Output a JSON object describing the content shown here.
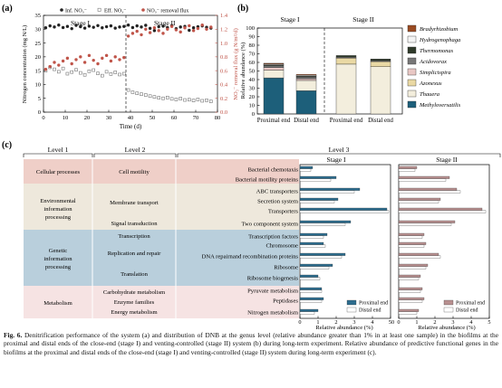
{
  "panel_a": {
    "label": "(a)",
    "legend": [
      "Inf. NO₃⁻",
      "Eff. NO₃⁻",
      "NO₃⁻ removal flux"
    ],
    "stage_labels": [
      "Stage I",
      "Stage II"
    ],
    "xlabel": "Time (d)",
    "ylabel_left": "Nitrogen concentration (mg N/L)",
    "ylabel_right": "NO₃⁻ removal flux (g N/m²/d)",
    "xticks": [
      "0",
      "10",
      "20",
      "30",
      "40",
      "50",
      "60",
      "70",
      "80"
    ],
    "yticks_left": [
      "0",
      "5",
      "10",
      "15",
      "20",
      "25",
      "30",
      "35"
    ],
    "yticks_right": [
      "0.0",
      "0.2",
      "0.4",
      "0.6",
      "0.8",
      "1.0",
      "1.2",
      "1.4"
    ]
  },
  "panel_b": {
    "label": "(b)",
    "stage_labels": [
      "Stage I",
      "Stage II"
    ],
    "ylabel": "Relative abundance (%)",
    "yticks": [
      "0",
      "10",
      "20",
      "30",
      "40",
      "50",
      "60",
      "70",
      "80",
      "90",
      "100"
    ],
    "categories": [
      "Proximal end",
      "Distal end",
      "Proximal end",
      "Distal end"
    ]
  },
  "panel_c": {
    "label": "(c)",
    "headers": [
      "Level 1",
      "Level 2",
      "Level 3"
    ],
    "stage_labels": [
      "Stage I",
      "Stage II"
    ],
    "level1": [
      "Cellular processes",
      "Environmental information processing",
      "Genetic information processing",
      "Metabolism"
    ],
    "level2": [
      "Cell motility",
      "Membrane transport",
      "Signal transduction",
      "Transcription",
      "Replication and repair",
      "Translation",
      "Carbohydrate metabolism",
      "Enzyme families",
      "Energy metabolism"
    ],
    "level3": [
      "Bacterial chemotaxis",
      "Bacterial motility proteins",
      "ABC transporters",
      "Secretion system",
      "Transporters",
      "Two component system",
      "Transcription factors",
      "Chromosome",
      "DNA repairnand recombination proteins",
      "Ribosome",
      "Ribosome biogenesis",
      "Pyruvate metabolism",
      "Peptidases",
      "Nitrogen metabolism"
    ],
    "xlabel": "Relative abundance (%)",
    "xticks_I": [
      "0",
      "1",
      "2",
      "3",
      "4",
      "5"
    ],
    "xticks_II": [
      "0",
      "1",
      "2",
      "3",
      "4",
      "5"
    ],
    "legend_I": [
      "Proximal end",
      "Distal end"
    ],
    "legend_II": [
      "Proximal end",
      "Distal end"
    ]
  },
  "caption": {
    "label": "Fig. 6.",
    "text": "Denitrification performance of the system (a) and distribution of DNB at the genus level (relative abundance greater than 1% in at least one sample) in the biofilms at the proximal and distal ends of the close-end (stage I) and venting-controlled (stage II) system (b) during long-term experiment. Relative abundance of predictive functional genes in the biofilms at the proximal and distal ends of the close-end (stage I) and venting-controlled (stage II) system during long-term experiment (c)."
  },
  "colors": {
    "inf": "#222222",
    "eff": "#777777",
    "flux": "#c0554a",
    "proximal_I": "#2e6d8e",
    "proximal_II": "#b89090",
    "distal": "#ffffff",
    "lvl_cell": "#efcfc8",
    "lvl_env": "#eee8dc",
    "lvl_gen": "#b9cfdc",
    "lvl_met": "#f6e3e3"
  },
  "chart_data": [
    {
      "type": "scatter",
      "title": "",
      "xlabel": "Time (d)",
      "ylabel": "Nitrogen concentration (mg N/L)",
      "xlim": [
        0,
        80
      ],
      "ylim": [
        0,
        35
      ],
      "y2lim": [
        0,
        1.4
      ],
      "stage_boundary": 38,
      "series": [
        {
          "name": "Inf. NO₃⁻",
          "axis": "left",
          "x": [
            1,
            3,
            5,
            7,
            9,
            11,
            13,
            15,
            17,
            19,
            21,
            23,
            25,
            27,
            29,
            31,
            33,
            35,
            37,
            39,
            41,
            43,
            45,
            47,
            49,
            51,
            53,
            55,
            57,
            59,
            61,
            63,
            65,
            67,
            69,
            71,
            73,
            75,
            77
          ],
          "y": [
            30.5,
            31.2,
            30.8,
            31.5,
            30.6,
            31.0,
            30.2,
            31.4,
            30.9,
            30.4,
            31.1,
            30.7,
            31.3,
            30.5,
            30.9,
            31.2,
            30.4,
            30.8,
            31.0,
            31.5,
            30.6,
            31.2,
            30.8,
            31.4,
            30.3,
            29.5,
            30.9,
            31.1,
            30.6,
            31.3,
            30.2,
            30.8,
            31.0,
            29.6,
            30.5,
            30.9,
            31.2,
            30.7,
            30.4
          ]
        },
        {
          "name": "Eff. NO₃⁻",
          "axis": "left",
          "x": [
            1,
            3,
            5,
            7,
            9,
            11,
            13,
            15,
            17,
            19,
            21,
            23,
            25,
            27,
            29,
            31,
            33,
            35,
            37,
            39,
            41,
            43,
            45,
            47,
            49,
            51,
            53,
            55,
            57,
            59,
            61,
            63,
            65,
            67,
            69,
            71,
            73,
            75,
            77
          ],
          "y": [
            15.0,
            16.2,
            15.5,
            14.6,
            15.8,
            13.9,
            14.5,
            15.3,
            14.2,
            13.5,
            14.8,
            15.2,
            14.0,
            13.2,
            14.6,
            13.8,
            14.4,
            13.6,
            13.9,
            8.0,
            7.2,
            6.8,
            6.5,
            6.2,
            5.8,
            5.5,
            5.2,
            5.0,
            5.3,
            4.8,
            4.6,
            4.9,
            4.4,
            4.5,
            4.2,
            4.6,
            4.1,
            4.3,
            3.9
          ]
        },
        {
          "name": "NO₃⁻ removal flux",
          "axis": "right",
          "x": [
            1,
            3,
            5,
            7,
            9,
            11,
            13,
            15,
            17,
            19,
            21,
            23,
            25,
            27,
            29,
            31,
            33,
            35,
            37,
            39,
            41,
            43,
            45,
            47,
            49,
            51,
            53,
            55,
            57,
            59,
            61,
            63,
            65,
            67,
            69,
            71,
            73,
            75,
            77
          ],
          "y": [
            0.62,
            0.66,
            0.72,
            0.68,
            0.74,
            0.78,
            0.7,
            0.76,
            0.8,
            0.72,
            0.82,
            0.75,
            0.7,
            0.78,
            0.82,
            0.74,
            0.8,
            0.76,
            0.79,
            1.1,
            1.14,
            1.17,
            1.12,
            1.2,
            1.15,
            1.22,
            1.18,
            1.14,
            1.2,
            1.24,
            1.19,
            1.16,
            1.22,
            1.25,
            1.18,
            1.21,
            1.26,
            1.2,
            1.23
          ]
        }
      ]
    },
    {
      "type": "bar",
      "stacked": true,
      "title": "",
      "ylabel": "Relative abundance (%)",
      "ylim": [
        0,
        100
      ],
      "categories": [
        "Proximal end",
        "Distal end",
        "Proximal end",
        "Distal end"
      ],
      "stage_groups": [
        {
          "name": "Stage I",
          "categories": [
            0,
            1
          ]
        },
        {
          "name": "Stage II",
          "categories": [
            2,
            3
          ]
        }
      ],
      "series": [
        {
          "name": "Methyloversatilis",
          "color": "#1d5f7a",
          "values": [
            42,
            27,
            0,
            0
          ]
        },
        {
          "name": "Thauera",
          "color": "#f3eedd",
          "values": [
            9,
            12,
            58,
            55
          ]
        },
        {
          "name": "Azonexus",
          "color": "#ead9a4",
          "values": [
            0,
            0,
            7,
            6
          ]
        },
        {
          "name": "Simplicispira",
          "color": "#e9c8c5",
          "values": [
            3,
            2,
            0,
            0
          ]
        },
        {
          "name": "Acidovorax",
          "color": "#777777",
          "values": [
            2,
            2,
            1,
            1
          ]
        },
        {
          "name": "Thermomonas",
          "color": "#2f3a2a",
          "values": [
            1,
            1,
            2,
            2
          ]
        },
        {
          "name": "Hydrogenophaga",
          "color": "#f4f4f4",
          "values": [
            1,
            1,
            0,
            0
          ]
        },
        {
          "name": "Bradyrhizobium",
          "color": "#9a4b22",
          "values": [
            1,
            1,
            0,
            0
          ]
        }
      ]
    },
    {
      "type": "bar",
      "orientation": "horizontal",
      "title": "Stage I",
      "xlabel": "Relative abundance (%)",
      "xlim": [
        0,
        5
      ],
      "categories": [
        "Bacterial chemotaxis",
        "Bacterial motility proteins",
        "ABC transporters",
        "Secretion system",
        "Transporters",
        "Two component system",
        "Transcription factors",
        "Chromosome",
        "DNA repairnand recombination proteins",
        "Ribosome",
        "Ribosome biogenesis",
        "Pyruvate metabolism",
        "Peptidases",
        "Nitrogen metabolism"
      ],
      "series": [
        {
          "name": "Proximal end",
          "values": [
            0.7,
            2.0,
            3.3,
            2.1,
            4.8,
            2.8,
            1.5,
            1.3,
            2.5,
            1.8,
            1.0,
            1.2,
            1.3,
            1.0
          ]
        },
        {
          "name": "Distal end",
          "values": [
            0.6,
            1.7,
            3.0,
            1.9,
            4.9,
            2.5,
            1.3,
            1.4,
            2.3,
            1.6,
            1.1,
            1.2,
            1.2,
            0.8
          ]
        }
      ]
    },
    {
      "type": "bar",
      "orientation": "horizontal",
      "title": "Stage II",
      "xlabel": "Relative abundance (%)",
      "xlim": [
        0,
        5
      ],
      "categories": [
        "Bacterial chemotaxis",
        "Bacterial motility proteins",
        "ABC transporters",
        "Secretion system",
        "Transporters",
        "Two component system",
        "Transcription factors",
        "Chromosome",
        "DNA repairnand recombination proteins",
        "Ribosome",
        "Ribosome biogenesis",
        "Pyruvate metabolism",
        "Peptidases",
        "Nitrogen metabolism"
      ],
      "series": [
        {
          "name": "Proximal end",
          "values": [
            1.0,
            2.8,
            3.2,
            2.3,
            4.6,
            3.1,
            1.4,
            1.5,
            2.2,
            1.6,
            1.2,
            1.3,
            1.4,
            1.1
          ]
        },
        {
          "name": "Distal end",
          "values": [
            0.9,
            2.6,
            3.4,
            2.2,
            4.8,
            2.9,
            1.3,
            1.4,
            2.3,
            1.5,
            1.1,
            1.2,
            1.3,
            1.0
          ]
        }
      ]
    }
  ]
}
